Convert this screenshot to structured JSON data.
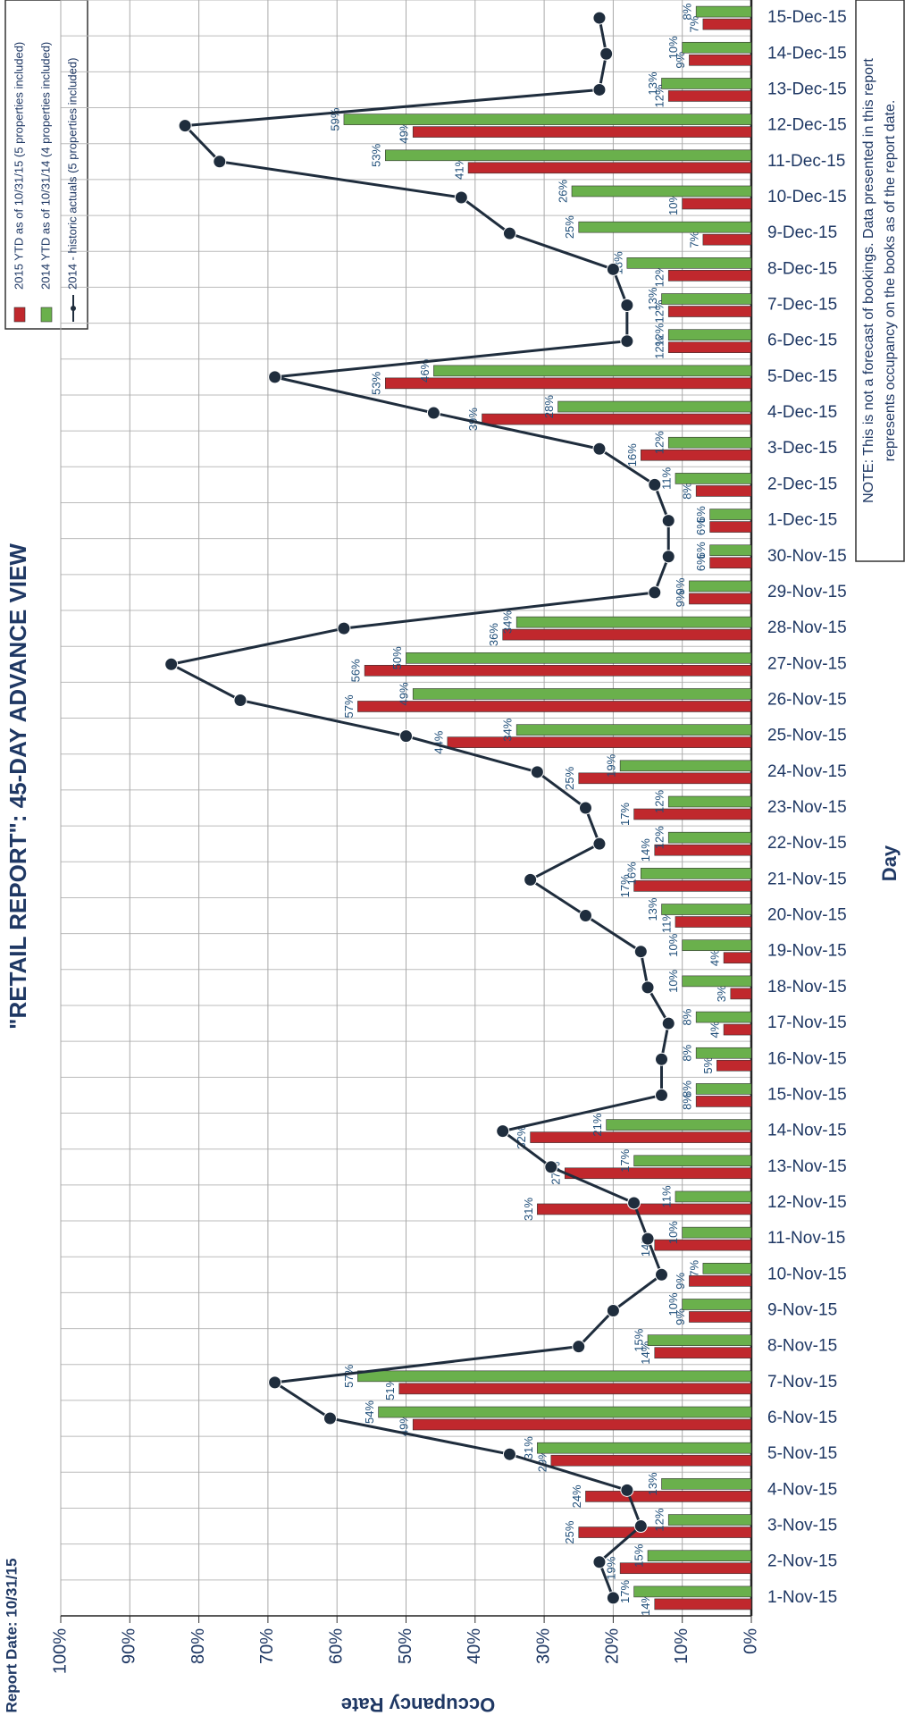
{
  "chart_data": {
    "type": "bar",
    "title": "\"RETAIL REPORT\":  45-DAY ADVANCE VIEW",
    "subtitle": "Report Date: 10/31/15",
    "x_label": "Day",
    "y_label": "Occupancy Rate",
    "note": [
      "NOTE: This is not a forecast of bookings. Data presented in this report",
      "represents occupancy on the books as of the report date."
    ],
    "legend": "top-left",
    "grid": true,
    "ylim": [
      0,
      100
    ],
    "yticks": [
      {
        "value": 0,
        "label": "0%"
      },
      {
        "value": 10,
        "label": "10%"
      },
      {
        "value": 20,
        "label": "20%"
      },
      {
        "value": 30,
        "label": "30%"
      },
      {
        "value": 40,
        "label": "40%"
      },
      {
        "value": 50,
        "label": "50%"
      },
      {
        "value": 60,
        "label": "60%"
      },
      {
        "value": 70,
        "label": "70%"
      },
      {
        "value": 80,
        "label": "80%"
      },
      {
        "value": 90,
        "label": "90%"
      },
      {
        "value": 100,
        "label": "100%"
      }
    ],
    "categories": [
      "1-Nov-15",
      "2-Nov-15",
      "3-Nov-15",
      "4-Nov-15",
      "5-Nov-15",
      "6-Nov-15",
      "7-Nov-15",
      "8-Nov-15",
      "9-Nov-15",
      "10-Nov-15",
      "11-Nov-15",
      "12-Nov-15",
      "13-Nov-15",
      "14-Nov-15",
      "15-Nov-15",
      "16-Nov-15",
      "17-Nov-15",
      "18-Nov-15",
      "19-Nov-15",
      "20-Nov-15",
      "21-Nov-15",
      "22-Nov-15",
      "23-Nov-15",
      "24-Nov-15",
      "25-Nov-15",
      "26-Nov-15",
      "27-Nov-15",
      "28-Nov-15",
      "29-Nov-15",
      "30-Nov-15",
      "1-Dec-15",
      "2-Dec-15",
      "3-Dec-15",
      "4-Dec-15",
      "5-Dec-15",
      "6-Dec-15",
      "7-Dec-15",
      "8-Dec-15",
      "9-Dec-15",
      "10-Dec-15",
      "11-Dec-15",
      "12-Dec-15",
      "13-Dec-15",
      "14-Dec-15",
      "15-Dec-15"
    ],
    "series": [
      {
        "name": "2015 YTD as of 10/31/15 (5 properties included)",
        "type": "bar",
        "color": "#c0282d",
        "values": [
          14,
          19,
          25,
          24,
          29,
          49,
          51,
          14,
          9,
          9,
          14,
          31,
          27,
          32,
          8,
          5,
          4,
          3,
          4,
          11,
          17,
          14,
          17,
          25,
          44,
          57,
          56,
          36,
          9,
          6,
          6,
          8,
          16,
          39,
          53,
          12,
          12,
          12,
          7,
          10,
          41,
          49,
          12,
          9,
          7
        ],
        "value_labels": [
          "14%",
          "19%",
          "25%",
          "24%",
          "29%",
          "49%",
          "51%",
          "14%",
          "9%",
          "9%",
          "14%",
          "31%",
          "27%",
          "32%",
          "8%",
          "5%",
          "4%",
          "3%",
          "4%",
          "11%",
          "17%",
          "14%",
          "17%",
          "25%",
          "44%",
          "57%",
          "56%",
          "36%",
          "9%",
          "6%",
          "6%",
          "8%",
          "16%",
          "39%",
          "53%",
          "12%",
          "12%",
          "12%",
          "7%",
          "10%",
          "41%",
          "49%",
          "12%",
          "9%",
          "7%"
        ]
      },
      {
        "name": "2014 YTD as of 10/31/14 (4 properties included)",
        "type": "bar",
        "color": "#6ab04c",
        "values": [
          17,
          15,
          12,
          13,
          31,
          54,
          57,
          15,
          10,
          7,
          10,
          11,
          17,
          21,
          8,
          8,
          8,
          10,
          10,
          13,
          16,
          12,
          12,
          19,
          34,
          49,
          50,
          34,
          9,
          6,
          6,
          11,
          12,
          28,
          46,
          12,
          13,
          18,
          25,
          26,
          53,
          59,
          13,
          10,
          8
        ],
        "value_labels": [
          "17%",
          "15%",
          "12%",
          "13%",
          "31%",
          "54%",
          "57%",
          "15%",
          "10%",
          "7%",
          "10%",
          "11%",
          "17%",
          "21%",
          "8%",
          "8%",
          "8%",
          "10%",
          "10%",
          "13%",
          "16%",
          "12%",
          "12%",
          "19%",
          "34%",
          "49%",
          "50%",
          "34%",
          "9%",
          "6%",
          "6%",
          "11%",
          "12%",
          "28%",
          "46%",
          "12%",
          "13%",
          "18%",
          "25%",
          "26%",
          "53%",
          "59%",
          "13%",
          "10%",
          "8%"
        ]
      },
      {
        "name": "2014 - historic actuals (5 properties included)",
        "type": "line",
        "color": "#1f2d3d",
        "values": [
          20,
          22,
          16,
          18,
          35,
          61,
          69,
          25,
          20,
          13,
          15,
          17,
          29,
          36,
          13,
          13,
          12,
          15,
          16,
          24,
          32,
          22,
          24,
          31,
          50,
          74,
          84,
          59,
          14,
          12,
          12,
          14,
          22,
          46,
          69,
          18,
          18,
          20,
          35,
          42,
          77,
          82,
          22,
          21,
          22
        ]
      }
    ]
  }
}
